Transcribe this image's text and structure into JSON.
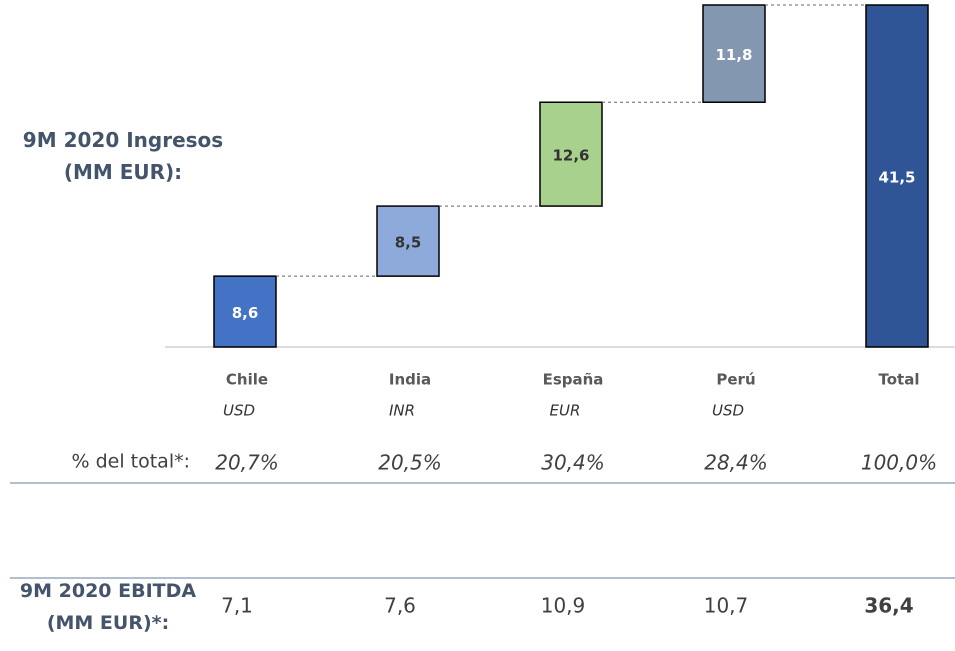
{
  "chart_data": {
    "type": "waterfall",
    "title": "9M 2020 Ingresos (MM EUR):",
    "categories": [
      "Chile",
      "India",
      "España",
      "Perú",
      "Total"
    ],
    "currencies": [
      "USD",
      "INR",
      "EUR",
      "USD"
    ],
    "values": [
      8.6,
      8.5,
      12.6,
      11.8,
      41.5
    ],
    "value_labels": [
      "8,6",
      "8,5",
      "12,6",
      "11,8",
      "41,5"
    ],
    "colors": [
      "#4472c4",
      "#8eaadb",
      "#a9d18e",
      "#8497b0",
      "#2f5597"
    ],
    "label_colors": [
      "#ffffff",
      "#333333",
      "#333333",
      "#ffffff",
      "#ffffff"
    ],
    "share": {
      "label": "% del total*:",
      "values": [
        20.7,
        20.5,
        30.4,
        28.4,
        100.0
      ],
      "value_labels": [
        "20,7%",
        "20,5%",
        "30,4%",
        "28,4%",
        "100,0%"
      ]
    },
    "ebitda": {
      "label": "9M 2020 EBITDA (MM EUR)*:",
      "values": [
        7.1,
        7.6,
        10.9,
        10.7,
        36.4
      ],
      "value_labels": [
        "7,1",
        "7,6",
        "10,9",
        "10,7",
        "36,4"
      ]
    }
  }
}
